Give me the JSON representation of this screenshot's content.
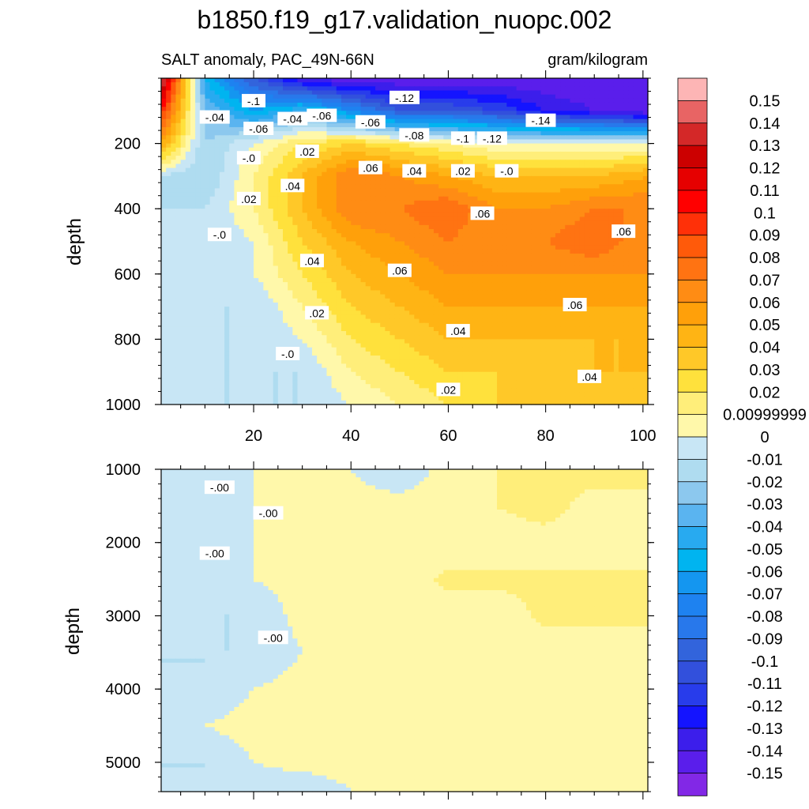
{
  "title": "b1850.f19_g17.validation_nuopc.002",
  "chart_data": [
    {
      "type": "heatmap",
      "panel": "upper",
      "left_string": "SALT anomaly, PAC_49N-66N",
      "right_string": "gram/kilogram",
      "ylabel": "depth",
      "xlabel": "",
      "xlim": [
        1,
        101
      ],
      "ylim": [
        0,
        1000
      ],
      "y_reversed": true,
      "x_ticks": [
        20,
        40,
        60,
        80,
        100
      ],
      "y_ticks": [
        200,
        400,
        600,
        800,
        1000
      ],
      "depth_levels": [
        0,
        100,
        200,
        300,
        400,
        500,
        600,
        700,
        800,
        900,
        1000
      ],
      "x_columns": [
        1,
        10,
        20,
        30,
        40,
        50,
        60,
        70,
        80,
        90,
        101
      ],
      "values": [
        [
          0.15,
          -0.05,
          -0.1,
          -0.14,
          -0.15,
          -0.15,
          -0.15,
          -0.15,
          -0.15,
          -0.15,
          -0.15
        ],
        [
          0.1,
          -0.03,
          -0.06,
          -0.04,
          -0.07,
          -0.1,
          -0.1,
          -0.11,
          -0.13,
          -0.14,
          -0.15
        ],
        [
          0.05,
          -0.02,
          0.0,
          0.02,
          0.03,
          0.02,
          0.01,
          0.0,
          0.0,
          0.0,
          0.0
        ],
        [
          -0.01,
          -0.02,
          0.01,
          0.04,
          0.07,
          0.06,
          0.05,
          0.04,
          0.04,
          0.04,
          0.05
        ],
        [
          -0.01,
          -0.01,
          0.01,
          0.04,
          0.07,
          0.07,
          0.08,
          0.06,
          0.06,
          0.07,
          0.07
        ],
        [
          -0.01,
          -0.01,
          0.0,
          0.03,
          0.05,
          0.06,
          0.07,
          0.06,
          0.07,
          0.08,
          0.06
        ],
        [
          -0.01,
          -0.01,
          0.0,
          0.02,
          0.04,
          0.05,
          0.06,
          0.06,
          0.06,
          0.06,
          0.06
        ],
        [
          -0.01,
          -0.01,
          -0.01,
          0.01,
          0.03,
          0.04,
          0.05,
          0.05,
          0.05,
          0.05,
          0.05
        ],
        [
          -0.01,
          -0.01,
          -0.01,
          0.0,
          0.02,
          0.03,
          0.04,
          0.04,
          0.04,
          0.04,
          0.04
        ],
        [
          -0.01,
          -0.01,
          -0.01,
          -0.01,
          0.01,
          0.02,
          0.03,
          0.03,
          0.03,
          0.04,
          0.04
        ],
        [
          -0.01,
          -0.01,
          -0.01,
          -0.01,
          0.0,
          0.01,
          0.02,
          0.03,
          0.03,
          0.03,
          0.03
        ]
      ],
      "contour_labels": [
        {
          "text": "-.04",
          "x": 12,
          "y": 120
        },
        {
          "text": "-.1",
          "x": 20,
          "y": 70
        },
        {
          "text": "-.06",
          "x": 21,
          "y": 155
        },
        {
          "text": "-.04",
          "x": 28,
          "y": 125
        },
        {
          "text": "-.06",
          "x": 34,
          "y": 115
        },
        {
          "text": "-.12",
          "x": 51,
          "y": 60
        },
        {
          "text": "-.06",
          "x": 44,
          "y": 135
        },
        {
          "text": "-.08",
          "x": 53,
          "y": 175
        },
        {
          "text": "-.1",
          "x": 63,
          "y": 185
        },
        {
          "text": "-.12",
          "x": 69,
          "y": 185
        },
        {
          "text": "-.14",
          "x": 79,
          "y": 130
        },
        {
          "text": "-.0",
          "x": 19,
          "y": 245
        },
        {
          "text": ".02",
          "x": 31,
          "y": 225
        },
        {
          "text": ".06",
          "x": 44,
          "y": 275
        },
        {
          "text": ".04",
          "x": 53,
          "y": 285
        },
        {
          "text": ".02",
          "x": 63,
          "y": 285
        },
        {
          "text": "-.0",
          "x": 72,
          "y": 285
        },
        {
          "text": ".04",
          "x": 28,
          "y": 330
        },
        {
          "text": ".02",
          "x": 19,
          "y": 370
        },
        {
          "text": ".06",
          "x": 67,
          "y": 415
        },
        {
          "text": ".06",
          "x": 96,
          "y": 470
        },
        {
          "text": "-.0",
          "x": 13,
          "y": 480
        },
        {
          "text": ".04",
          "x": 32,
          "y": 560
        },
        {
          "text": ".06",
          "x": 50,
          "y": 590
        },
        {
          "text": ".02",
          "x": 33,
          "y": 720
        },
        {
          "text": ".06",
          "x": 86,
          "y": 695
        },
        {
          "text": ".04",
          "x": 62,
          "y": 775
        },
        {
          "text": "-.0",
          "x": 27,
          "y": 845
        },
        {
          "text": ".04",
          "x": 89,
          "y": 915
        },
        {
          "text": ".02",
          "x": 60,
          "y": 955
        }
      ]
    },
    {
      "type": "heatmap",
      "panel": "lower",
      "ylabel": "depth",
      "xlim": [
        1,
        101
      ],
      "ylim": [
        1000,
        5400
      ],
      "y_reversed": true,
      "y_ticks": [
        1000,
        2000,
        3000,
        4000,
        5000
      ],
      "depth_levels": [
        1000,
        1500,
        2000,
        2500,
        3000,
        3500,
        4000,
        4500,
        5000,
        5400
      ],
      "x_columns": [
        1,
        10,
        20,
        30,
        40,
        50,
        60,
        70,
        80,
        90,
        101
      ],
      "values": [
        [
          -0.01,
          -0.01,
          0.0,
          0.005,
          0.0,
          -0.01,
          0.005,
          0.01,
          0.015,
          0.015,
          0.015
        ],
        [
          -0.01,
          -0.01,
          0.0,
          0.0,
          0.005,
          0.005,
          0.01,
          0.01,
          0.015,
          0.005,
          0.005
        ],
        [
          -0.01,
          -0.01,
          0.0,
          0.005,
          0.005,
          0.005,
          0.005,
          0.005,
          0.005,
          0.005,
          0.005
        ],
        [
          -0.01,
          -0.01,
          0.0,
          0.005,
          0.005,
          0.005,
          0.012,
          0.012,
          0.012,
          0.012,
          0.012
        ],
        [
          -0.01,
          -0.01,
          -0.01,
          0.005,
          0.005,
          0.005,
          0.005,
          0.005,
          0.012,
          0.012,
          0.012
        ],
        [
          -0.01,
          -0.01,
          -0.01,
          0.0,
          0.005,
          0.005,
          0.005,
          0.005,
          0.005,
          0.005,
          0.005
        ],
        [
          -0.01,
          -0.01,
          0.0,
          0.005,
          0.005,
          0.005,
          0.005,
          0.005,
          0.005,
          0.005,
          0.005
        ],
        [
          -0.01,
          0.0,
          0.005,
          0.005,
          0.005,
          0.005,
          0.005,
          0.005,
          0.005,
          0.005,
          0.005
        ],
        [
          -0.01,
          -0.01,
          0.0,
          0.005,
          0.005,
          0.005,
          0.005,
          0.005,
          0.005,
          0.005,
          0.005
        ],
        [
          -0.01,
          -0.01,
          -0.01,
          -0.01,
          0.0,
          0.005,
          0.005,
          0.005,
          0.005,
          0.005,
          0.005
        ]
      ],
      "contour_labels": [
        {
          "text": "-.00",
          "x": 13,
          "y": 1250
        },
        {
          "text": "-.00",
          "x": 23,
          "y": 1600
        },
        {
          "text": "-.00",
          "x": 12,
          "y": 2150
        },
        {
          "text": "-.00",
          "x": 24,
          "y": 3300
        }
      ]
    }
  ],
  "colorbar": {
    "levels": [
      "0.15",
      "0.14",
      "0.13",
      "0.12",
      "0.11",
      "0.1",
      "0.09",
      "0.08",
      "0.07",
      "0.06",
      "0.05",
      "0.04",
      "0.03",
      "0.02",
      "0.00999999",
      "0",
      "-0.01",
      "-0.02",
      "-0.03",
      "-0.04",
      "-0.05",
      "-0.06",
      "-0.07",
      "-0.08",
      "-0.09",
      "-0.1",
      "-0.11",
      "-0.12",
      "-0.13",
      "-0.14",
      "-0.15"
    ],
    "colors": [
      "#fdb5b5",
      "#e86464",
      "#d42828",
      "#cc0000",
      "#e60000",
      "#ff0000",
      "#ff3008",
      "#ff5a0a",
      "#ff7312",
      "#ff8c14",
      "#ffa00a",
      "#ffb414",
      "#ffc828",
      "#ffe13c",
      "#ffee7a",
      "#fff8aa",
      "#c8e6f5",
      "#afdcf0",
      "#8cc8ee",
      "#5ab4f0",
      "#28aaf0",
      "#00b4f0",
      "#1496f0",
      "#1e82f0",
      "#2878eb",
      "#3264dc",
      "#3250dc",
      "#283ceb",
      "#1414ff",
      "#3c1eeb",
      "#5a1eeb",
      "#8228e6"
    ]
  }
}
